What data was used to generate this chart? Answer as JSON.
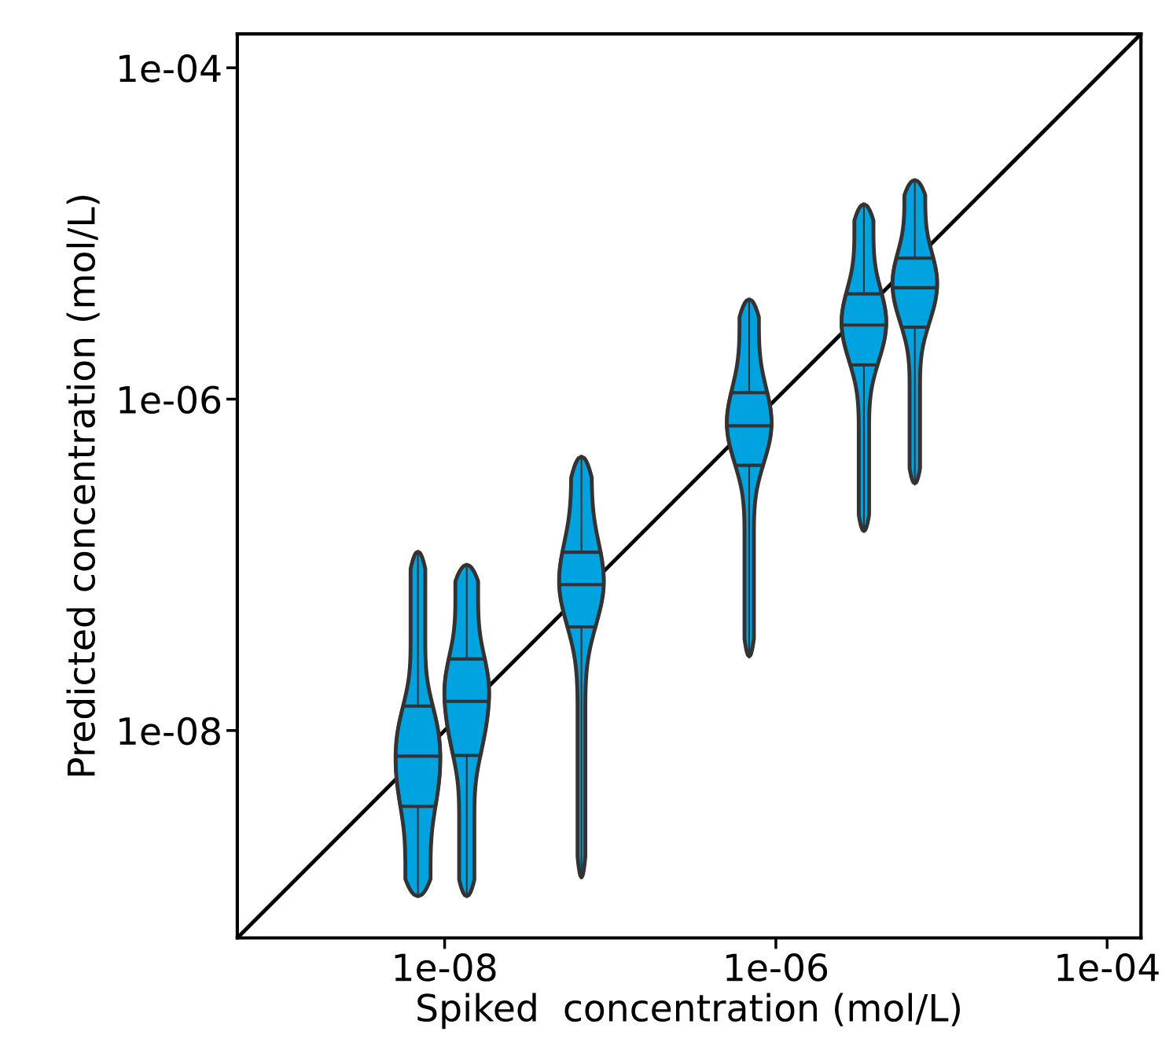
{
  "chart_data": {
    "type": "box",
    "xlabel": "Spiked  concentration (mol/L)",
    "ylabel": "Predicted concentration (mol/L)",
    "log": "xy",
    "grid": false,
    "xlim": [
      5.6e-10,
      0.00016
    ],
    "ylim": [
      5.6e-10,
      0.00016
    ],
    "xticks": [
      {
        "value": 1e-08,
        "label": "1e-08"
      },
      {
        "value": 1e-06,
        "label": "1e-06"
      },
      {
        "value": 0.0001,
        "label": "1e-04"
      }
    ],
    "yticks": [
      {
        "value": 1e-08,
        "label": "1e-08"
      },
      {
        "value": 1e-06,
        "label": "1e-06"
      },
      {
        "value": 0.0001,
        "label": "1e-04"
      }
    ],
    "series": [
      {
        "type": "box",
        "color": "#00a3e0",
        "x": [
          6.9e-09,
          1.36e-08,
          6.7e-08,
          6.9e-07,
          3.4e-06,
          6.9e-06
        ],
        "boxes": [
          {
            "low": 1e-09,
            "q1": 3.5e-09,
            "median": 7e-09,
            "q3": 1.4e-08,
            "high": 1.2e-07
          },
          {
            "low": 1e-09,
            "q1": 7.1e-09,
            "median": 1.5e-08,
            "q3": 2.7e-08,
            "high": 1e-07
          },
          {
            "low": 1.3e-09,
            "q1": 4.2e-08,
            "median": 7.6e-08,
            "q3": 1.2e-07,
            "high": 4.5e-07
          },
          {
            "low": 2.8e-08,
            "q1": 4e-07,
            "median": 6.9e-07,
            "q3": 1.1e-06,
            "high": 4e-06
          },
          {
            "low": 1.6e-07,
            "q1": 1.6e-06,
            "median": 2.8e-06,
            "q3": 4.3e-06,
            "high": 1.5e-05
          },
          {
            "low": 3.1e-07,
            "q1": 2.7e-06,
            "median": 4.7e-06,
            "q3": 7.1e-06,
            "high": 2.1e-05
          }
        ]
      },
      {
        "type": "line",
        "color": "#000000",
        "x": [
          5.6e-10,
          0.00016
        ],
        "values": [
          5.6e-10,
          0.00016
        ]
      }
    ]
  }
}
